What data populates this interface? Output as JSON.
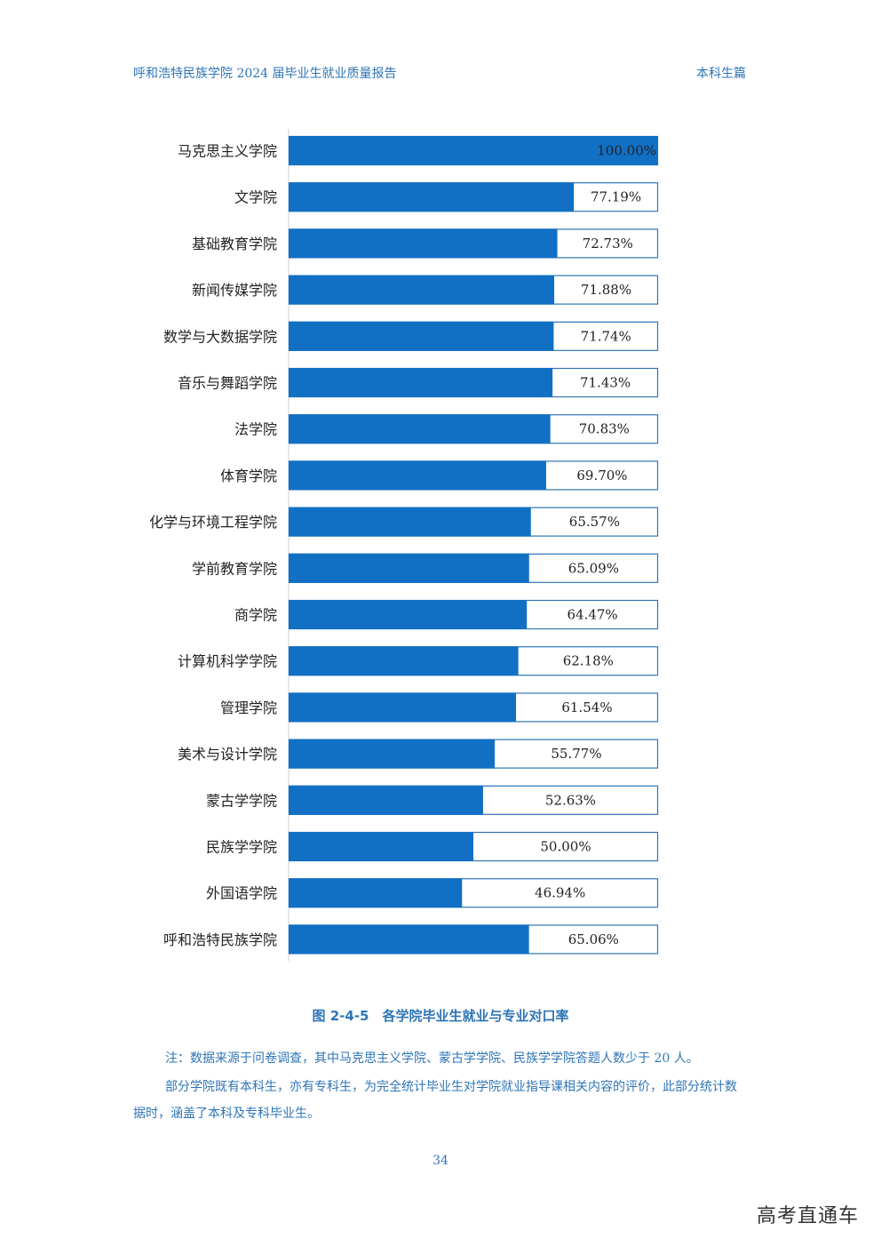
{
  "header": {
    "title": "呼和浩特民族学院 2024 届毕业生就业质量报告",
    "section": "本科生篇"
  },
  "chart_data": {
    "type": "bar",
    "orientation": "horizontal",
    "xlim": [
      0,
      100
    ],
    "categories": [
      "马克思主义学院",
      "文学院",
      "基础教育学院",
      "新闻传媒学院",
      "数学与大数据学院",
      "音乐与舞蹈学院",
      "法学院",
      "体育学院",
      "化学与环境工程学院",
      "学前教育学院",
      "商学院",
      "计算机科学学院",
      "管理学院",
      "美术与设计学院",
      "蒙古学学院",
      "民族学学院",
      "外国语学院",
      "呼和浩特民族学院"
    ],
    "values": [
      100.0,
      77.19,
      72.73,
      71.88,
      71.74,
      71.43,
      70.83,
      69.7,
      65.57,
      65.09,
      64.47,
      62.18,
      61.54,
      55.77,
      52.63,
      50.0,
      46.94,
      65.06
    ],
    "value_labels": [
      "100.00%",
      "77.19%",
      "72.73%",
      "71.88%",
      "71.74%",
      "71.43%",
      "70.83%",
      "69.70%",
      "65.57%",
      "65.09%",
      "64.47%",
      "62.18%",
      "61.54%",
      "55.77%",
      "52.63%",
      "50.00%",
      "46.94%",
      "65.06%"
    ],
    "bar_color": "#1170c4",
    "track_border_color": "#2e75b6"
  },
  "caption": "图 2-4-5　各学院毕业生就业与专业对口率",
  "notes": [
    "注：数据来源于问卷调查，其中马克思主义学院、蒙古学学院、民族学学院答题人数少于 20 人。",
    "部分学院既有本科生，亦有专科生，为完全统计毕业生对学院就业指导课相关内容的评价，此部分统计数据时，涵盖了本科及专科毕业生。"
  ],
  "page_number": "34",
  "watermark": "高考直通车"
}
